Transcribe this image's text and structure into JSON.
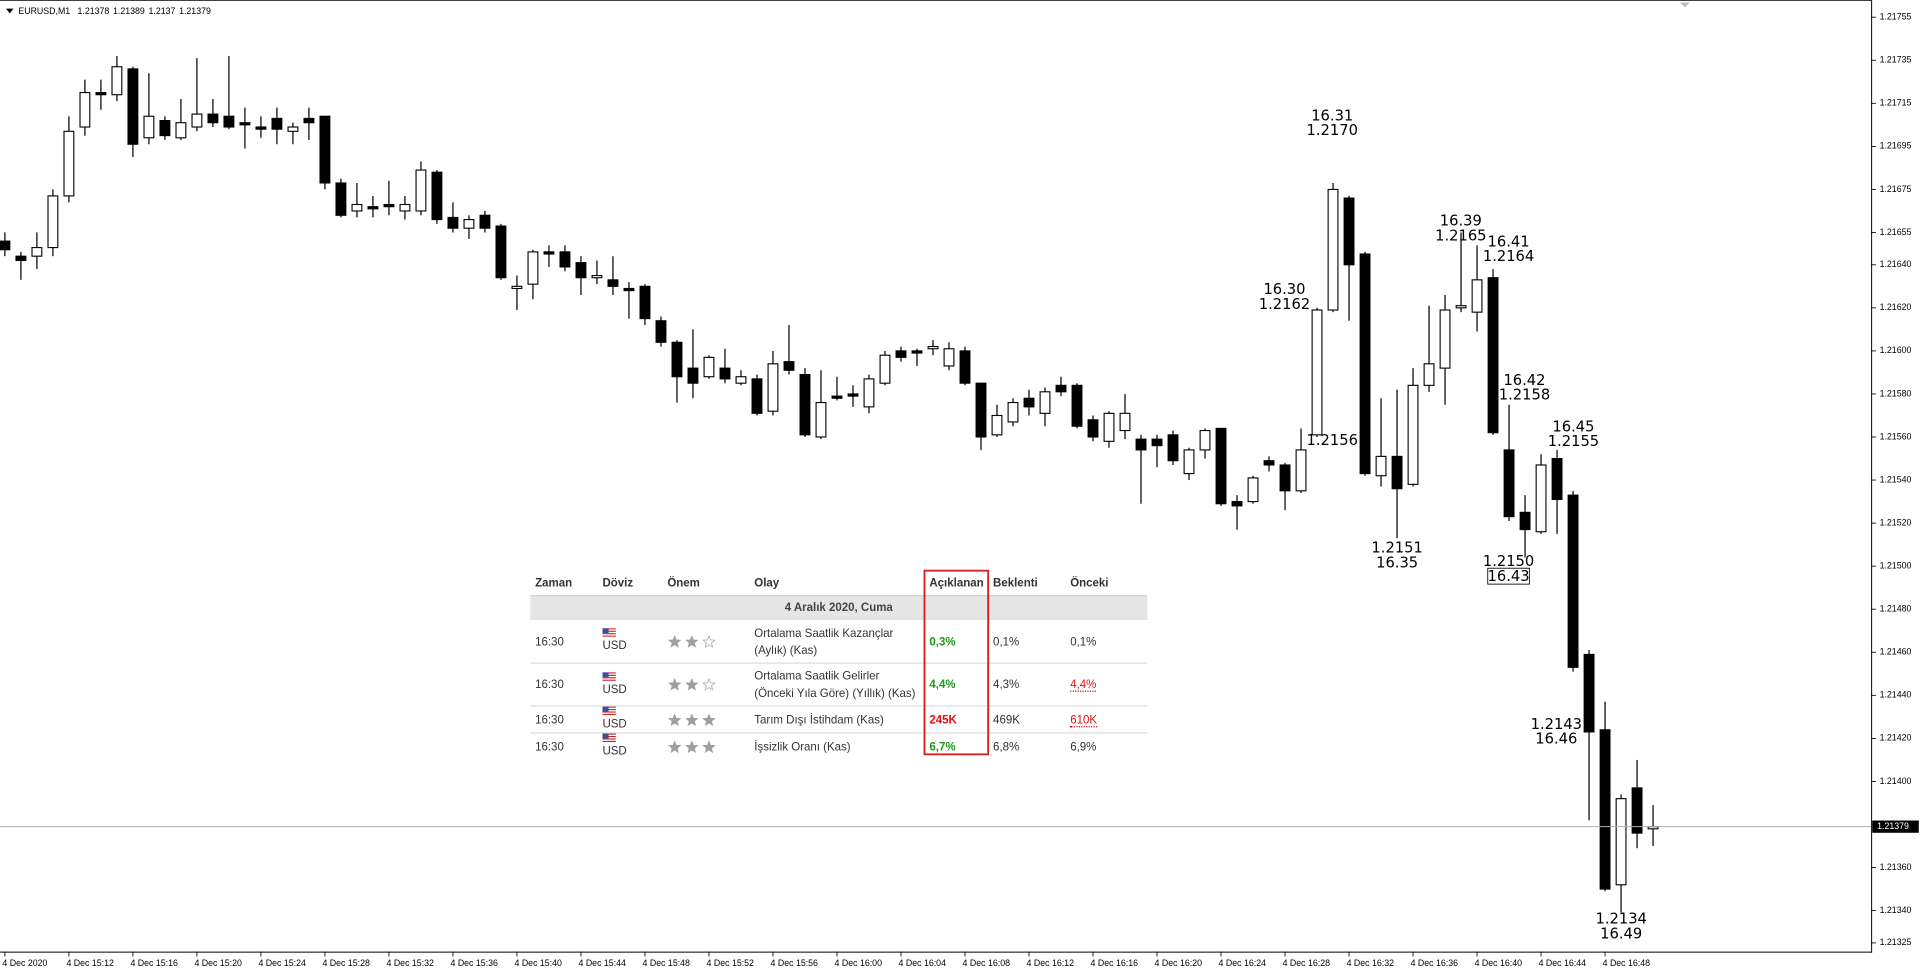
{
  "chart_data": {
    "type": "candlestick",
    "title": "EURUSD,M1",
    "categories": [
      "4 Dec 2020",
      null,
      null,
      null,
      "4 Dec 15:12",
      null,
      null,
      null,
      "4 Dec 15:16",
      null,
      null,
      null,
      "4 Dec 15:20",
      null,
      null,
      null,
      "4 Dec 15:24",
      null,
      null,
      null,
      "4 Dec 15:28",
      null,
      null,
      null,
      "4 Dec 15:32",
      null,
      null,
      null,
      "4 Dec 15:36",
      null,
      null,
      null,
      "4 Dec 15:40",
      null,
      null,
      null,
      "4 Dec 15:44",
      null,
      null,
      null,
      "4 Dec 15:48",
      null,
      null,
      null,
      "4 Dec 15:52",
      null,
      null,
      null,
      "4 Dec 15:56",
      null,
      null,
      null,
      "4 Dec 16:00",
      null,
      null,
      null,
      "4 Dec 16:04",
      null,
      null,
      null,
      "4 Dec 16:08",
      null,
      null,
      null,
      "4 Dec 16:12",
      null,
      null,
      null,
      "4 Dec 16:16",
      null,
      null,
      null,
      "4 Dec 16:20",
      null,
      null,
      null,
      "4 Dec 16:24",
      null,
      null,
      null,
      "4 Dec 16:28",
      null,
      null,
      null,
      "4 Dec 16:32",
      null,
      null,
      null,
      "4 Dec 16:36",
      null,
      null,
      null,
      "4 Dec 16:40",
      null,
      null,
      null,
      "4 Dec 16:44",
      null,
      null,
      null,
      "4 Dec 16:48",
      null,
      null,
      null
    ],
    "open": [
      1.21651,
      1.21644,
      1.21644,
      1.21648,
      1.21672,
      1.21704,
      1.2172,
      1.21719,
      1.21731,
      1.21699,
      1.21707,
      1.21699,
      1.21704,
      1.2171,
      1.21709,
      1.21706,
      1.21704,
      1.21708,
      1.21702,
      1.21708,
      1.21709,
      1.21678,
      1.21665,
      1.21667,
      1.21668,
      1.21665,
      1.21665,
      1.21683,
      1.21662,
      1.21657,
      1.21663,
      1.21658,
      1.21629,
      1.21631,
      1.21646,
      1.21646,
      1.21641,
      1.21634,
      1.21633,
      1.21629,
      1.2163,
      1.21614,
      1.21604,
      1.21592,
      1.21588,
      1.21592,
      1.21585,
      1.21587,
      1.21572,
      1.21595,
      1.21589,
      1.2156,
      1.21579,
      1.2158,
      1.21574,
      1.21585,
      1.216,
      1.216,
      1.21601,
      1.21593,
      1.216,
      1.21585,
      1.21561,
      1.21567,
      1.21578,
      1.21571,
      1.21584,
      1.21584,
      1.21568,
      1.21558,
      1.21563,
      1.21559,
      1.21559,
      1.21561,
      1.21543,
      1.21554,
      1.21564,
      1.2153,
      1.2153,
      1.21549,
      1.21547,
      1.21535,
      1.21561,
      1.21619,
      1.21671,
      1.21645,
      1.21542,
      1.21551,
      1.21538,
      1.21584,
      1.21592,
      1.2162,
      1.21618,
      1.21634,
      1.21554,
      1.21525,
      1.21516,
      1.2155,
      1.21533,
      1.21459,
      1.21424,
      1.21352,
      1.21397,
      1.21378
    ],
    "high": [
      1.21655,
      1.21646,
      1.21655,
      1.21675,
      1.21709,
      1.21726,
      1.21726,
      1.21737,
      1.21732,
      1.21729,
      1.21709,
      1.21717,
      1.21736,
      1.21717,
      1.21737,
      1.21713,
      1.21709,
      1.21713,
      1.21706,
      1.21713,
      1.21709,
      1.2168,
      1.21678,
      1.21672,
      1.21679,
      1.21672,
      1.21688,
      1.21684,
      1.21669,
      1.21663,
      1.21665,
      1.21659,
      1.21635,
      1.21647,
      1.21649,
      1.21649,
      1.21644,
      1.21642,
      1.21644,
      1.21632,
      1.21631,
      1.21616,
      1.21605,
      1.2161,
      1.21598,
      1.21601,
      1.21591,
      1.21589,
      1.216,
      1.21612,
      1.21592,
      1.21591,
      1.21588,
      1.21584,
      1.21589,
      1.216,
      1.21602,
      1.21601,
      1.21605,
      1.21604,
      1.21602,
      1.21585,
      1.21575,
      1.21578,
      1.21582,
      1.21583,
      1.21588,
      1.21585,
      1.2157,
      1.21572,
      1.2158,
      1.21561,
      1.21561,
      1.21563,
      1.21555,
      1.21564,
      1.21564,
      1.21533,
      1.21542,
      1.21551,
      1.21548,
      1.21564,
      1.2162,
      1.21678,
      1.21672,
      1.21646,
      1.21578,
      1.21582,
      1.21592,
      1.21621,
      1.21626,
      1.21655,
      1.21649,
      1.21638,
      1.21575,
      1.21533,
      1.21552,
      1.21554,
      1.21535,
      1.21461,
      1.21437,
      1.21394,
      1.2141,
      1.21389
    ],
    "low": [
      1.21644,
      1.21633,
      1.21638,
      1.21644,
      1.21669,
      1.217,
      1.21712,
      1.21716,
      1.2169,
      1.21696,
      1.21698,
      1.21698,
      1.21702,
      1.21704,
      1.21703,
      1.21694,
      1.21699,
      1.21696,
      1.21696,
      1.21698,
      1.21675,
      1.21662,
      1.21662,
      1.21662,
      1.21663,
      1.21661,
      1.21663,
      1.21659,
      1.21655,
      1.21652,
      1.21655,
      1.21633,
      1.21619,
      1.21624,
      1.21639,
      1.21637,
      1.21626,
      1.21631,
      1.21626,
      1.21615,
      1.21612,
      1.21602,
      1.21576,
      1.21578,
      1.21587,
      1.21585,
      1.21584,
      1.2157,
      1.2157,
      1.21589,
      1.2156,
      1.21559,
      1.21577,
      1.21574,
      1.21571,
      1.21584,
      1.21595,
      1.21593,
      1.21598,
      1.21591,
      1.21584,
      1.21554,
      1.2156,
      1.21565,
      1.2157,
      1.21565,
      1.21579,
      1.21564,
      1.21558,
      1.21555,
      1.21559,
      1.21529,
      1.21546,
      1.21547,
      1.2154,
      1.2155,
      1.21528,
      1.21517,
      1.21529,
      1.21544,
      1.21526,
      1.21534,
      1.2156,
      1.21618,
      1.21614,
      1.21542,
      1.21537,
      1.21513,
      1.21537,
      1.21581,
      1.21575,
      1.21618,
      1.21609,
      1.21561,
      1.21521,
      1.21504,
      1.21515,
      1.21515,
      1.21451,
      1.21382,
      1.21349,
      1.21339,
      1.21369,
      1.2137
    ],
    "close": [
      1.21647,
      1.21642,
      1.21648,
      1.21672,
      1.21702,
      1.2172,
      1.21719,
      1.21732,
      1.21696,
      1.21709,
      1.217,
      1.21706,
      1.2171,
      1.21706,
      1.21704,
      1.21705,
      1.21703,
      1.21703,
      1.21704,
      1.21706,
      1.21678,
      1.21663,
      1.21668,
      1.21666,
      1.21667,
      1.21668,
      1.21684,
      1.21661,
      1.21657,
      1.21661,
      1.21657,
      1.21634,
      1.2163,
      1.21646,
      1.21645,
      1.21639,
      1.21634,
      1.21635,
      1.2163,
      1.21628,
      1.21615,
      1.21604,
      1.21588,
      1.21585,
      1.21597,
      1.21587,
      1.21588,
      1.21571,
      1.21594,
      1.21591,
      1.21561,
      1.21576,
      1.21578,
      1.21579,
      1.21587,
      1.21598,
      1.21597,
      1.21599,
      1.21602,
      1.21601,
      1.21585,
      1.2156,
      1.2157,
      1.21576,
      1.21574,
      1.21581,
      1.21581,
      1.21565,
      1.2156,
      1.21571,
      1.21571,
      1.21554,
      1.21556,
      1.21549,
      1.21554,
      1.21563,
      1.21529,
      1.21528,
      1.21541,
      1.21547,
      1.21535,
      1.21554,
      1.21619,
      1.21675,
      1.2164,
      1.21543,
      1.21551,
      1.21536,
      1.21584,
      1.21594,
      1.21619,
      1.21621,
      1.21633,
      1.21562,
      1.21523,
      1.21517,
      1.21547,
      1.21531,
      1.21453,
      1.21423,
      1.2135,
      1.21392,
      1.21376,
      1.21379
    ],
    "up_color": "#ffffff",
    "down_color": "#000000",
    "grid": false,
    "ylim": [
      1.21321,
      1.21763
    ],
    "yticks": [
      1.21755,
      1.21735,
      1.21715,
      1.21695,
      1.21675,
      1.21655,
      {
        "value": 1.2164,
        "label": "1.21640"
      },
      {
        "value": 1.2162,
        "label": "1.21620"
      },
      {
        "value": 1.216,
        "label": "1.21600"
      },
      {
        "value": 1.2158,
        "label": "1.21580"
      },
      {
        "value": 1.2156,
        "label": "1.21560"
      },
      {
        "value": 1.2154,
        "label": "1.21540"
      },
      {
        "value": 1.2152,
        "label": "1.21520"
      },
      {
        "value": 1.215,
        "label": "1.21500"
      },
      {
        "value": 1.2148,
        "label": "1.21480"
      },
      {
        "value": 1.2146,
        "label": "1.21460"
      },
      {
        "value": 1.2144,
        "label": "1.21440"
      },
      {
        "value": 1.2142,
        "label": "1.21420"
      },
      {
        "value": 1.214,
        "label": "1.21400"
      },
      {
        "value": 1.2136,
        "label": "1.21360"
      },
      {
        "value": 1.2134,
        "label": "1.21340"
      },
      1.21325
    ],
    "current_price": 1.21379,
    "annotations": [
      {
        "lines": [
          "16.31",
          "1.2170"
        ]
      },
      {
        "lines": [
          "16.30",
          "1.2162"
        ]
      },
      {
        "lines": [
          "1.2156"
        ]
      },
      {
        "lines": [
          "16.39",
          "1.2165"
        ]
      },
      {
        "lines": [
          "16.41",
          "1.2164"
        ]
      },
      {
        "lines": [
          "1.2151",
          "16.35"
        ]
      },
      {
        "lines": [
          "16.42",
          "1.2158"
        ]
      },
      {
        "lines": [
          "16.45",
          "1.2155"
        ]
      },
      {
        "lines": [
          "1.2150",
          "16.43"
        ]
      },
      {
        "lines": [
          "1.2143",
          "16.46"
        ]
      },
      {
        "lines": [
          "1.2134",
          "16.49"
        ]
      }
    ]
  },
  "calendar": {
    "columns": [
      "Zaman",
      "Döviz",
      "Önem",
      "Olay",
      "Açıklanan",
      "Beklenti",
      "Önceki"
    ],
    "date": "4 Aralık 2020, Cuma",
    "rows": [
      {
        "time": "16:30",
        "currency": "USD",
        "importance": 2,
        "event": "Ortalama Saatlik Kazançlar (Aylık) (Kas)",
        "actual": "0,3%",
        "forecast": "0,1%",
        "previous": "0,1%"
      },
      {
        "time": "16:30",
        "currency": "USD",
        "importance": 2,
        "event": "Ortalama Saatlik Gelirler (Önceki Yıla Göre) (Yıllık) (Kas)",
        "actual": "4,4%",
        "forecast": "4,3%",
        "previous": "4,4%"
      },
      {
        "time": "16:30",
        "currency": "USD",
        "importance": 3,
        "event": "Tarım Dışı İstihdam (Kas)",
        "actual": "245K",
        "forecast": "469K",
        "previous": "610K"
      },
      {
        "time": "16:30",
        "currency": "USD",
        "importance": 3,
        "event": "İşsizlik Oranı (Kas)",
        "actual": "6,7%",
        "forecast": "6,8%",
        "previous": "6,9%"
      }
    ]
  }
}
